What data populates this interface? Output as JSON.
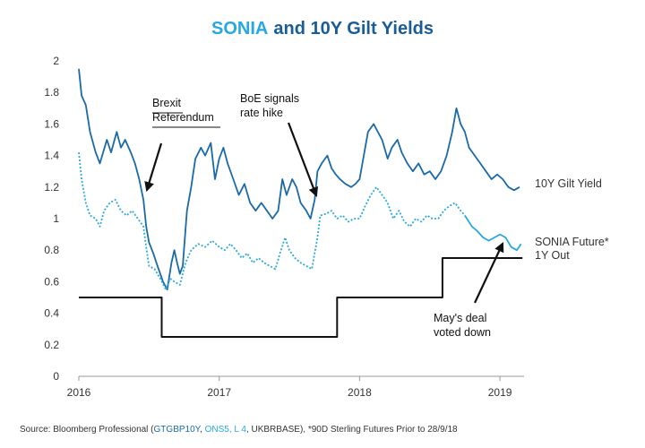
{
  "chart_data": {
    "type": "line",
    "title_parts": [
      {
        "text": "SONIA",
        "color": "#29a8e0"
      },
      {
        "text": "and 10Y Gilt Yields",
        "color": "#1a5c96"
      }
    ],
    "source_parts": [
      {
        "text": "Source: Bloomberg Professional (",
        "color": "#333333"
      },
      {
        "text": "GTGBP10Y",
        "color": "#1a6aa8"
      },
      {
        "text": ", ",
        "color": "#333333"
      },
      {
        "text": "ONS5, L 4",
        "color": "#29a8e0"
      },
      {
        "text": ", UKBRBASE), *90D Sterling Futures Prior to 28/9/18",
        "color": "#333333"
      }
    ],
    "xlim": [
      2016,
      2019.2
    ],
    "xticks": [
      2016,
      2017,
      2018,
      2019
    ],
    "ylim": [
      0,
      2
    ],
    "yticks": [
      0,
      0.2,
      0.4,
      0.6,
      0.8,
      1,
      1.2,
      1.4,
      1.6,
      1.8,
      2
    ],
    "grid": false,
    "series": [
      {
        "name": "10Y Gilt Yield",
        "color": "#1a6aa8",
        "dotted_until": null,
        "x": [
          2016.0,
          2016.02,
          2016.05,
          2016.08,
          2016.12,
          2016.15,
          2016.2,
          2016.23,
          2016.27,
          2016.3,
          2016.33,
          2016.37,
          2016.4,
          2016.43,
          2016.46,
          2016.48,
          2016.5,
          2016.53,
          2016.56,
          2016.6,
          2016.63,
          2016.66,
          2016.68,
          2016.7,
          2016.72,
          2016.74,
          2016.77,
          2016.8,
          2016.83,
          2016.87,
          2016.9,
          2016.94,
          2016.97,
          2017.0,
          2017.03,
          2017.06,
          2017.1,
          2017.14,
          2017.18,
          2017.22,
          2017.26,
          2017.3,
          2017.34,
          2017.38,
          2017.42,
          2017.45,
          2017.48,
          2017.52,
          2017.55,
          2017.58,
          2017.62,
          2017.65,
          2017.68,
          2017.7,
          2017.73,
          2017.77,
          2017.8,
          2017.83,
          2017.86,
          2017.9,
          2017.94,
          2017.97,
          2018.0,
          2018.03,
          2018.06,
          2018.1,
          2018.13,
          2018.16,
          2018.2,
          2018.23,
          2018.27,
          2018.3,
          2018.34,
          2018.38,
          2018.42,
          2018.46,
          2018.5,
          2018.54,
          2018.58,
          2018.62,
          2018.66,
          2018.69,
          2018.72,
          2018.75,
          2018.78,
          2018.82,
          2018.86,
          2018.9,
          2018.94,
          2018.98,
          2019.02,
          2019.06,
          2019.1,
          2019.14
        ],
        "values": [
          1.95,
          1.78,
          1.72,
          1.55,
          1.42,
          1.35,
          1.5,
          1.42,
          1.55,
          1.45,
          1.5,
          1.42,
          1.35,
          1.25,
          1.12,
          0.95,
          0.85,
          0.78,
          0.7,
          0.6,
          0.55,
          0.72,
          0.8,
          0.72,
          0.65,
          0.7,
          1.05,
          1.2,
          1.38,
          1.45,
          1.4,
          1.48,
          1.25,
          1.38,
          1.45,
          1.35,
          1.25,
          1.15,
          1.22,
          1.1,
          1.05,
          1.1,
          1.05,
          1.0,
          1.05,
          1.25,
          1.15,
          1.25,
          1.2,
          1.1,
          1.05,
          1.0,
          1.12,
          1.3,
          1.35,
          1.4,
          1.32,
          1.28,
          1.25,
          1.22,
          1.2,
          1.22,
          1.25,
          1.4,
          1.55,
          1.6,
          1.55,
          1.5,
          1.38,
          1.45,
          1.5,
          1.42,
          1.35,
          1.3,
          1.35,
          1.28,
          1.3,
          1.25,
          1.3,
          1.4,
          1.55,
          1.7,
          1.6,
          1.55,
          1.45,
          1.4,
          1.35,
          1.3,
          1.25,
          1.28,
          1.25,
          1.2,
          1.18,
          1.2
        ]
      },
      {
        "name": [
          "SONIA Future*",
          "1Y Out"
        ],
        "color": "#29a8e0",
        "dotted_until": 2018.74,
        "x": [
          2016.0,
          2016.02,
          2016.05,
          2016.08,
          2016.12,
          2016.15,
          2016.18,
          2016.22,
          2016.26,
          2016.3,
          2016.34,
          2016.38,
          2016.42,
          2016.46,
          2016.48,
          2016.5,
          2016.54,
          2016.58,
          2016.62,
          2016.65,
          2016.68,
          2016.72,
          2016.76,
          2016.8,
          2016.85,
          2016.9,
          2016.95,
          2017.0,
          2017.04,
          2017.08,
          2017.12,
          2017.16,
          2017.2,
          2017.24,
          2017.28,
          2017.32,
          2017.36,
          2017.4,
          2017.44,
          2017.47,
          2017.5,
          2017.54,
          2017.58,
          2017.62,
          2017.66,
          2017.7,
          2017.72,
          2017.76,
          2017.8,
          2017.84,
          2017.88,
          2017.92,
          2017.96,
          2018.0,
          2018.04,
          2018.08,
          2018.12,
          2018.16,
          2018.2,
          2018.24,
          2018.28,
          2018.32,
          2018.36,
          2018.4,
          2018.44,
          2018.48,
          2018.52,
          2018.56,
          2018.6,
          2018.64,
          2018.68,
          2018.72,
          2018.75,
          2018.8,
          2018.84,
          2018.88,
          2018.92,
          2018.96,
          2019.0,
          2019.04,
          2019.08,
          2019.12,
          2019.15
        ],
        "values": [
          1.42,
          1.25,
          1.1,
          1.02,
          1.0,
          0.95,
          1.05,
          1.1,
          1.12,
          1.05,
          1.02,
          1.05,
          1.0,
          0.95,
          0.82,
          0.7,
          0.68,
          0.62,
          0.55,
          0.62,
          0.6,
          0.58,
          0.72,
          0.8,
          0.84,
          0.82,
          0.86,
          0.82,
          0.8,
          0.84,
          0.8,
          0.75,
          0.78,
          0.72,
          0.75,
          0.72,
          0.7,
          0.68,
          0.8,
          0.88,
          0.8,
          0.75,
          0.72,
          0.7,
          0.68,
          0.88,
          1.02,
          1.03,
          1.05,
          1.0,
          1.02,
          0.98,
          1.0,
          1.0,
          1.08,
          1.15,
          1.2,
          1.15,
          1.1,
          1.0,
          1.05,
          0.98,
          0.95,
          1.0,
          0.98,
          1.02,
          1.0,
          1.0,
          1.05,
          1.08,
          1.1,
          1.05,
          1.02,
          0.95,
          0.92,
          0.88,
          0.86,
          0.88,
          0.9,
          0.88,
          0.82,
          0.8,
          0.84
        ]
      },
      {
        "color": "#111111",
        "dotted_until": null,
        "x": [
          2016.0,
          2016.59,
          2016.59,
          2017.84,
          2017.84,
          2018.59,
          2018.59,
          2019.16
        ],
        "values": [
          0.5,
          0.5,
          0.25,
          0.25,
          0.5,
          0.5,
          0.75,
          0.75
        ]
      }
    ],
    "annotations": [
      {
        "lines": [
          "Brexit",
          "Referendum"
        ]
      },
      {
        "lines": [
          "BoE signals",
          "rate hike"
        ]
      },
      {
        "lines": [
          "May's deal",
          "voted down"
        ]
      }
    ]
  }
}
